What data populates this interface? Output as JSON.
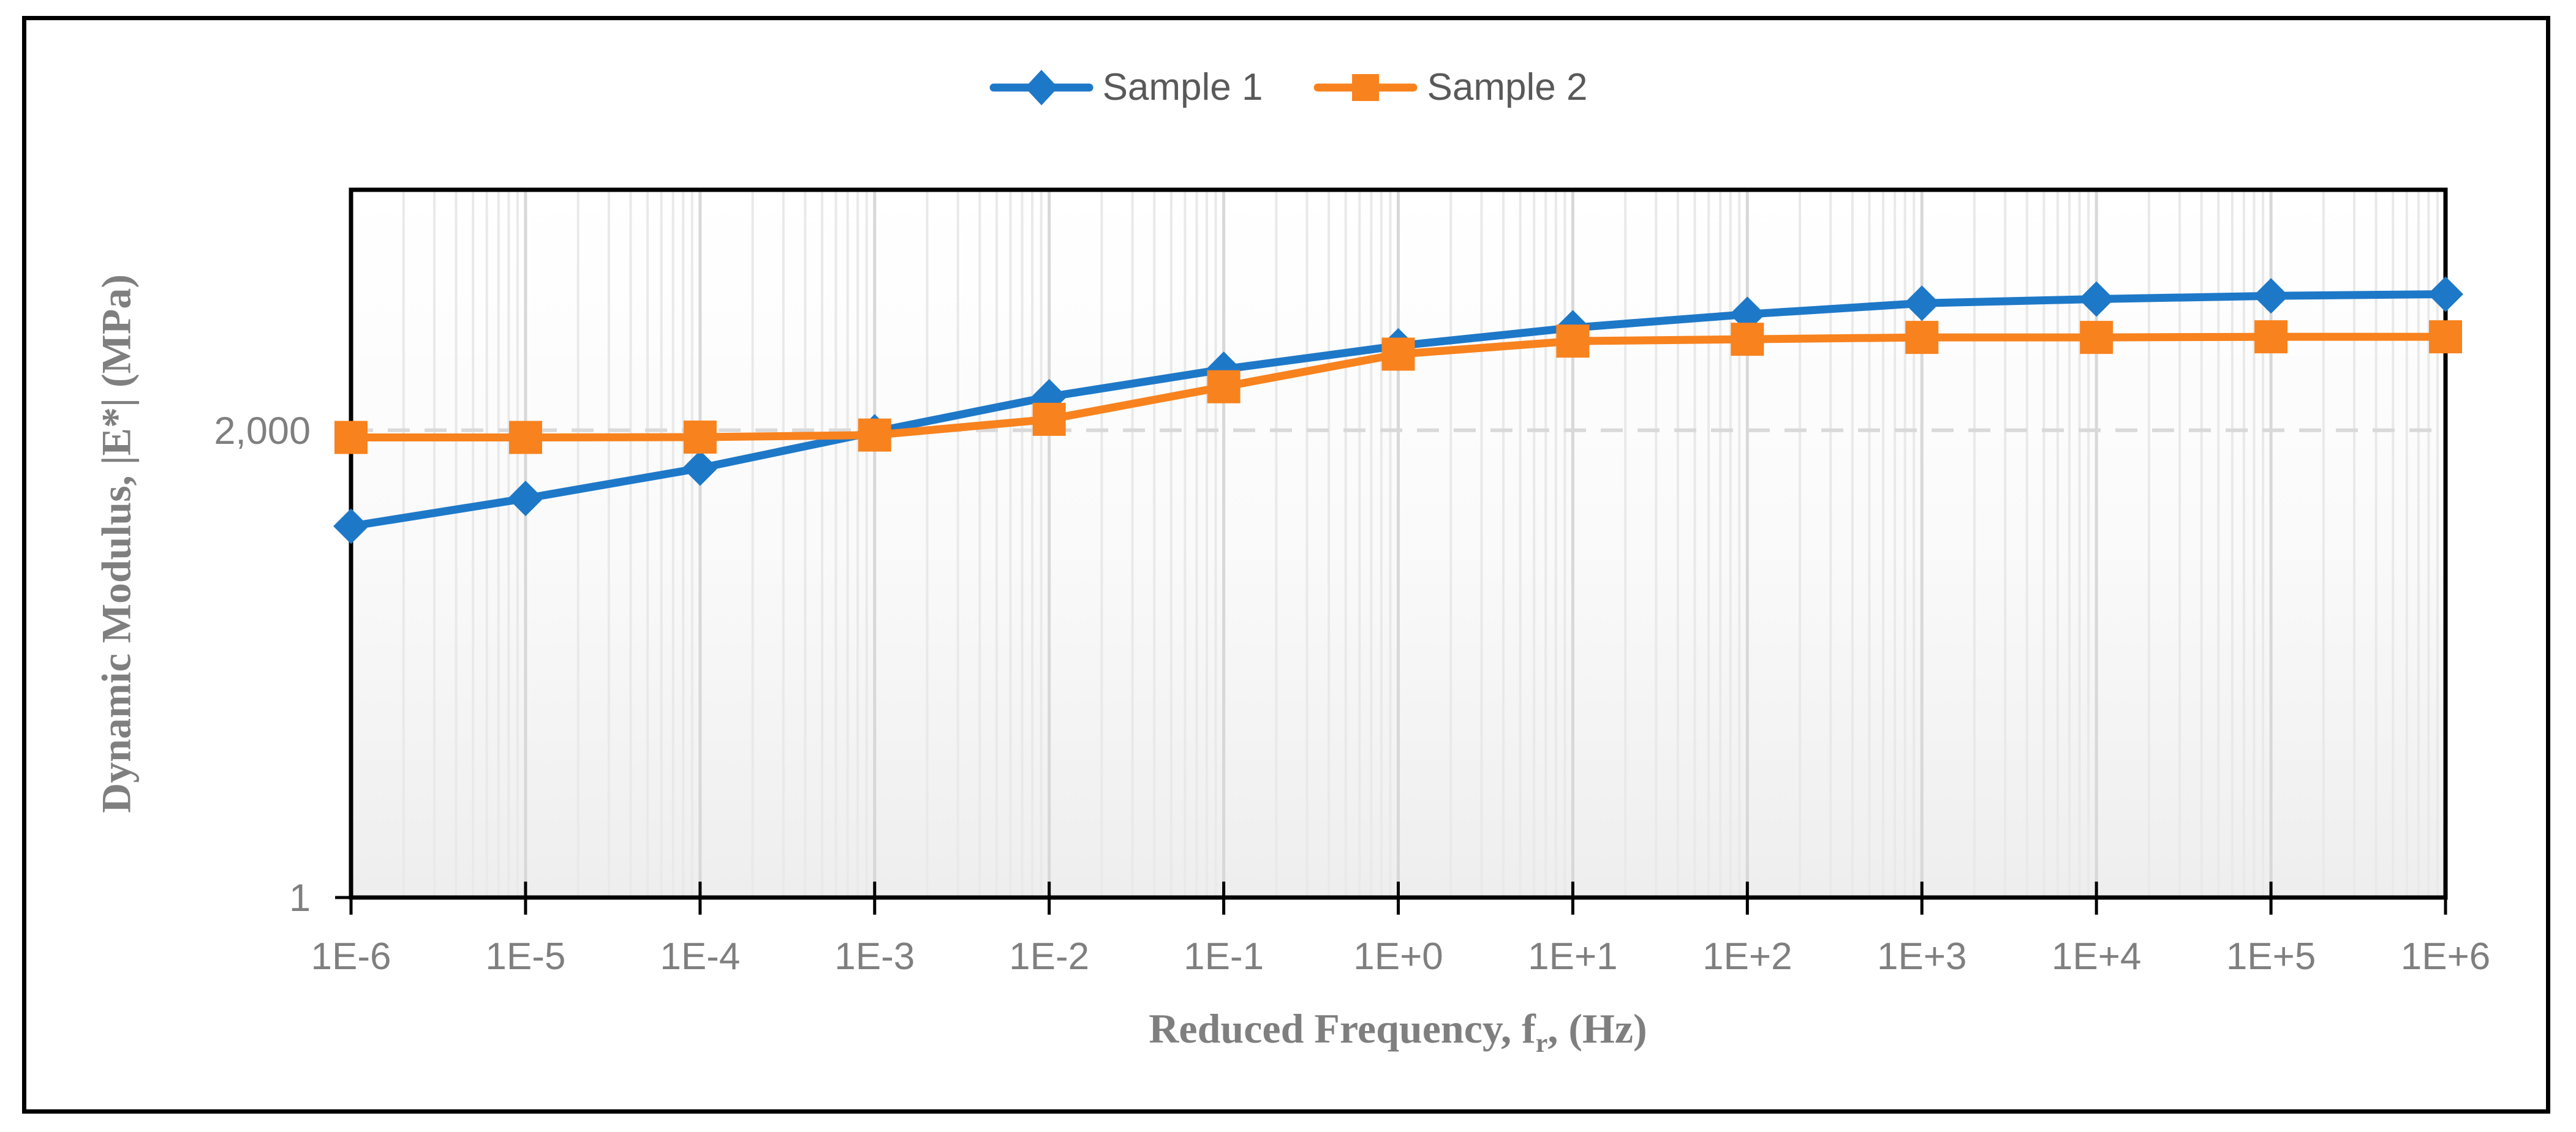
{
  "figure": {
    "outer_border_color": "#000000",
    "background_color": "#ffffff",
    "plot_background_top": "#ffffff",
    "plot_background_bottom": "#eeeeee",
    "major_gridline_color": "#d8d8d8",
    "minor_gridline_color": "#e9e9e9",
    "dashed_gridline_color": "#d9d9d9",
    "axis_color": "#000000",
    "tick_label_color": "#7f7f7f",
    "axis_title_color": "#7f7f7f",
    "legend_text_color": "#595959"
  },
  "legend": {
    "items": [
      {
        "label": "Sample 1",
        "color": "#1e78c8",
        "marker": "diamond"
      },
      {
        "label": "Sample 2",
        "color": "#f8821e",
        "marker": "square"
      }
    ]
  },
  "axis_titles": {
    "y": "Dynamic Modulus, |E*| (MPa)",
    "x_main": "Reduced Frequency, f",
    "x_sub": "r",
    "x_tail": ", (Hz)"
  },
  "chart_data": {
    "type": "line",
    "title": "",
    "xlabel": "Reduced Frequency, fr, (Hz)",
    "ylabel": "Dynamic Modulus, |E*| (MPa)",
    "x_scale": "log",
    "y_scale": "log",
    "x_range": [
      1e-06,
      1000000.0
    ],
    "y_range": [
      1,
      100000
    ],
    "x_values": [
      1e-06,
      1e-05,
      0.0001,
      0.001,
      0.01,
      0.1,
      1.0,
      10.0,
      100.0,
      1000.0,
      10000.0,
      100000.0,
      1000000.0
    ],
    "x_tick_labels": [
      "1E-6",
      "1E-5",
      "1E-4",
      "1E-3",
      "1E-2",
      "1E-1",
      "1E+0",
      "1E+1",
      "1E+2",
      "1E+3",
      "1E+4",
      "1E+5",
      "1E+6"
    ],
    "y_tick_labels": [
      {
        "text": "2,000",
        "value": 2000
      },
      {
        "text": "1",
        "value": 1
      }
    ],
    "dashed_horizontal_gridline_at": 2000,
    "grid": "log-minor-vertical",
    "legend_position": "top-center",
    "series": [
      {
        "name": "Sample 1",
        "color": "#1e78c8",
        "marker": "diamond",
        "values": [
          420,
          660,
          1080,
          1950,
          3450,
          5400,
          7900,
          10600,
          13200,
          15800,
          16900,
          17800,
          18300
        ]
      },
      {
        "name": "Sample 2",
        "color": "#f8821e",
        "marker": "square",
        "values": [
          1780,
          1780,
          1790,
          1850,
          2390,
          4060,
          6900,
          8530,
          8790,
          9060,
          9060,
          9150,
          9150
        ]
      }
    ]
  }
}
